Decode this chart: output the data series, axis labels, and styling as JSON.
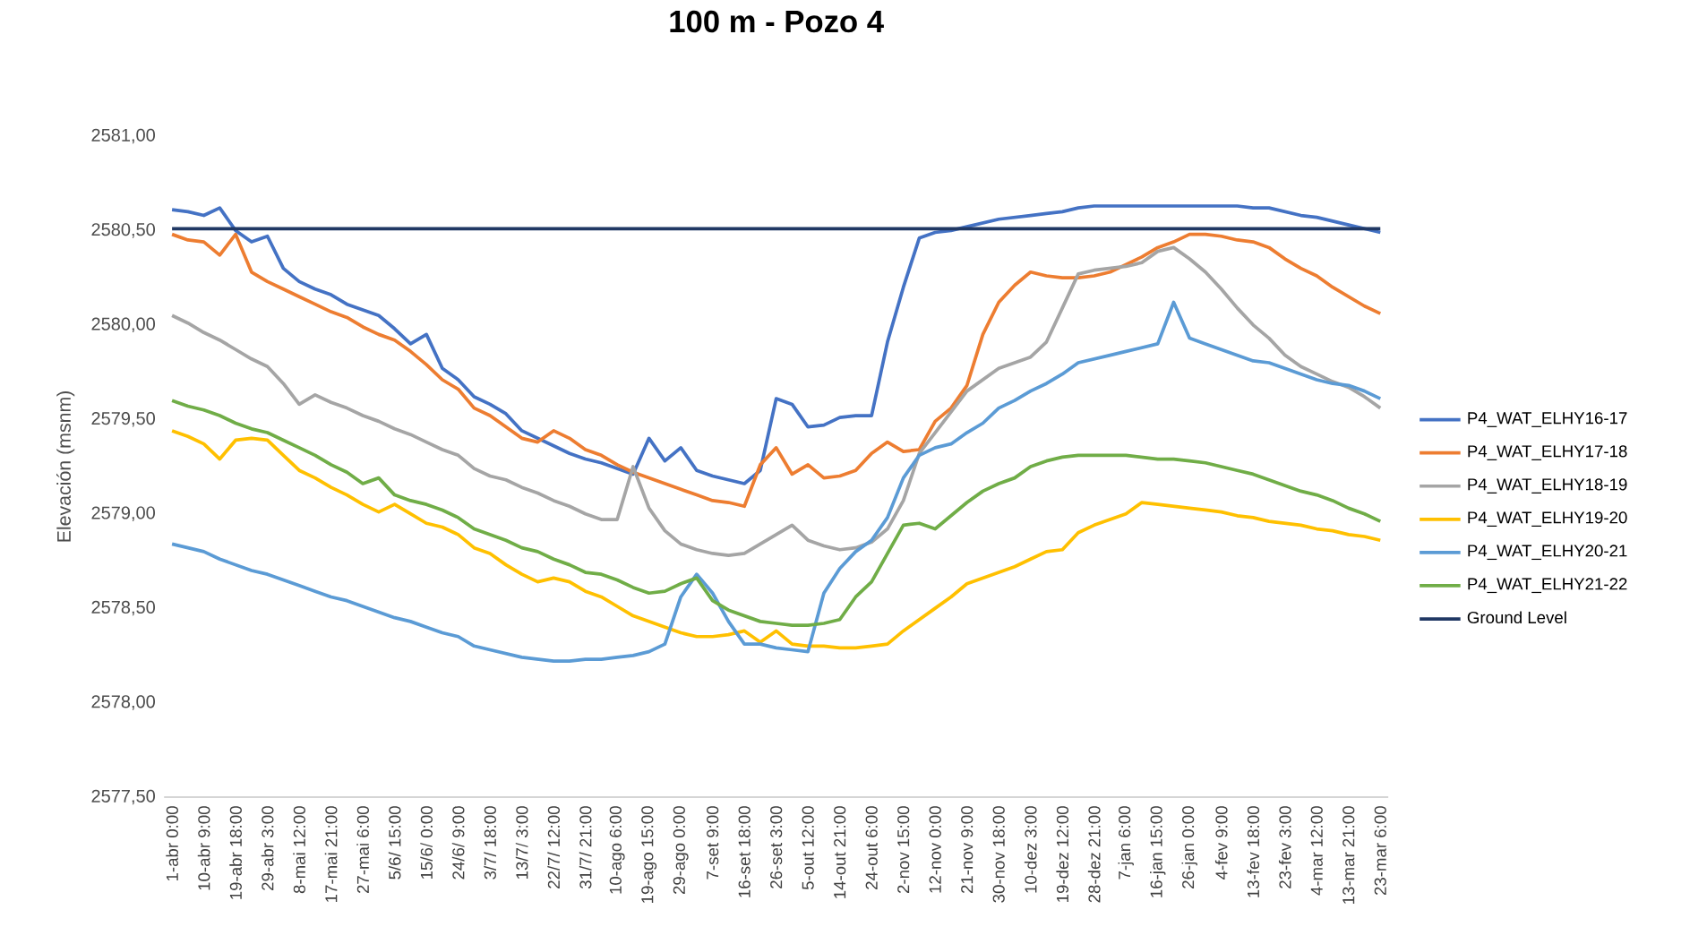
{
  "chart_data": {
    "type": "line",
    "title": "100 m  -  Pozo 4",
    "ylabel": "Elevación (msnm)",
    "categories": [
      "1-abr 0:00",
      null,
      "10-abr 9:00",
      null,
      "19-abr 18:00",
      null,
      "29-abr 3:00",
      null,
      "8-mai 12:00",
      null,
      "17-mai 21:00",
      null,
      "27-mai 6:00",
      null,
      "5/6/ 15:00",
      null,
      "15/6/ 0:00",
      null,
      "24/6/ 9:00",
      null,
      "3/7/ 18:00",
      null,
      "13/7/ 3:00",
      null,
      "22/7/ 12:00",
      null,
      "31/7/ 21:00",
      null,
      "10-ago 6:00",
      null,
      "19-ago 15:00",
      null,
      "29-ago 0:00",
      null,
      "7-set 9:00",
      null,
      "16-set 18:00",
      null,
      "26-set 3:00",
      null,
      "5-out 12:00",
      null,
      "14-out 21:00",
      null,
      "24-out 6:00",
      null,
      "2-nov 15:00",
      null,
      "12-nov 0:00",
      null,
      "21-nov 9:00",
      null,
      "30-nov 18:00",
      null,
      "10-dez 3:00",
      null,
      "19-dez 12:00",
      null,
      "28-dez 21:00",
      null,
      "7-jan 6:00",
      null,
      "16-jan 15:00",
      null,
      "26-jan 0:00",
      null,
      "4-fev 9:00",
      null,
      "13-fev 18:00",
      null,
      "23-fev 3:00",
      null,
      "4-mar 12:00",
      null,
      "13-mar 21:00",
      null,
      "23-mar 6:00"
    ],
    "ylim": [
      2577.5,
      2581
    ],
    "yticks": [
      {
        "value": 2577.5,
        "label": "2577,50"
      },
      {
        "value": 2578,
        "label": "2578,00"
      },
      {
        "value": 2578.5,
        "label": "2578,50"
      },
      {
        "value": 2579,
        "label": "2579,00"
      },
      {
        "value": 2579.5,
        "label": "2579,50"
      },
      {
        "value": 2580,
        "label": "2580,00"
      },
      {
        "value": 2580.5,
        "label": "2580,50"
      },
      {
        "value": 2581,
        "label": "2581,00"
      }
    ],
    "legend": "right",
    "series": [
      {
        "name": "P4_WAT_ELHY16-17",
        "color": "#4472c4",
        "values": [
          2580.61,
          2580.6,
          2580.58,
          2580.62,
          2580.5,
          2580.44,
          2580.47,
          2580.3,
          2580.23,
          2580.19,
          2580.16,
          2580.11,
          2580.08,
          2580.05,
          2579.98,
          2579.9,
          2579.95,
          2579.77,
          2579.71,
          2579.62,
          2579.58,
          2579.53,
          2579.44,
          2579.4,
          2579.36,
          2579.32,
          2579.29,
          2579.27,
          2579.24,
          2579.21,
          2579.4,
          2579.28,
          2579.35,
          2579.23,
          2579.2,
          2579.18,
          2579.16,
          2579.23,
          2579.61,
          2579.58,
          2579.46,
          2579.47,
          2579.51,
          2579.52,
          2579.52,
          2579.91,
          2580.2,
          2580.46,
          2580.49,
          2580.5,
          2580.52,
          2580.54,
          2580.56,
          2580.57,
          2580.58,
          2580.59,
          2580.6,
          2580.62,
          2580.63,
          2580.63,
          2580.63,
          2580.63,
          2580.63,
          2580.63,
          2580.63,
          2580.63,
          2580.63,
          2580.63,
          2580.62,
          2580.62,
          2580.6,
          2580.58,
          2580.57,
          2580.55,
          2580.53,
          2580.51,
          2580.49
        ]
      },
      {
        "name": "P4_WAT_ELHY17-18",
        "color": "#ed7d31",
        "values": [
          2580.48,
          2580.45,
          2580.44,
          2580.37,
          2580.48,
          2580.28,
          2580.23,
          2580.19,
          2580.15,
          2580.11,
          2580.07,
          2580.04,
          2579.99,
          2579.95,
          2579.92,
          2579.86,
          2579.79,
          2579.71,
          2579.66,
          2579.56,
          2579.52,
          2579.46,
          2579.4,
          2579.38,
          2579.44,
          2579.4,
          2579.34,
          2579.31,
          2579.26,
          2579.22,
          2579.19,
          2579.16,
          2579.13,
          2579.1,
          2579.07,
          2579.06,
          2579.04,
          2579.26,
          2579.35,
          2579.21,
          2579.26,
          2579.19,
          2579.2,
          2579.23,
          2579.32,
          2579.38,
          2579.33,
          2579.34,
          2579.49,
          2579.56,
          2579.68,
          2579.95,
          2580.12,
          2580.21,
          2580.28,
          2580.26,
          2580.25,
          2580.25,
          2580.26,
          2580.28,
          2580.32,
          2580.36,
          2580.41,
          2580.44,
          2580.48,
          2580.48,
          2580.47,
          2580.45,
          2580.44,
          2580.41,
          2580.35,
          2580.3,
          2580.26,
          2580.2,
          2580.15,
          2580.1,
          2580.06
        ]
      },
      {
        "name": "P4_WAT_ELHY18-19",
        "color": "#a5a5a5",
        "values": [
          2580.05,
          2580.01,
          2579.96,
          2579.92,
          2579.87,
          2579.82,
          2579.78,
          2579.69,
          2579.58,
          2579.63,
          2579.59,
          2579.56,
          2579.52,
          2579.49,
          2579.45,
          2579.42,
          2579.38,
          2579.34,
          2579.31,
          2579.24,
          2579.2,
          2579.18,
          2579.14,
          2579.11,
          2579.07,
          2579.04,
          2579.0,
          2578.97,
          2578.97,
          2579.25,
          2579.03,
          2578.91,
          2578.84,
          2578.81,
          2578.79,
          2578.78,
          2578.79,
          2578.84,
          2578.89,
          2578.94,
          2578.86,
          2578.83,
          2578.81,
          2578.82,
          2578.85,
          2578.92,
          2579.07,
          2579.32,
          2579.43,
          2579.54,
          2579.65,
          2579.71,
          2579.77,
          2579.8,
          2579.83,
          2579.91,
          2580.09,
          2580.27,
          2580.29,
          2580.3,
          2580.31,
          2580.33,
          2580.39,
          2580.41,
          2580.35,
          2580.28,
          2580.19,
          2580.09,
          2580.0,
          2579.93,
          2579.84,
          2579.78,
          2579.74,
          2579.7,
          2579.67,
          2579.62,
          2579.56
        ]
      },
      {
        "name": "P4_WAT_ELHY19-20",
        "color": "#ffc000",
        "values": [
          2579.44,
          2579.41,
          2579.37,
          2579.29,
          2579.39,
          2579.4,
          2579.39,
          2579.31,
          2579.23,
          2579.19,
          2579.14,
          2579.1,
          2579.05,
          2579.01,
          2579.05,
          2579.0,
          2578.95,
          2578.93,
          2578.89,
          2578.82,
          2578.79,
          2578.73,
          2578.68,
          2578.64,
          2578.66,
          2578.64,
          2578.59,
          2578.56,
          2578.51,
          2578.46,
          2578.43,
          2578.4,
          2578.37,
          2578.35,
          2578.35,
          2578.36,
          2578.38,
          2578.32,
          2578.38,
          2578.31,
          2578.3,
          2578.3,
          2578.29,
          2578.29,
          2578.3,
          2578.31,
          2578.38,
          2578.44,
          2578.5,
          2578.56,
          2578.63,
          2578.66,
          2578.69,
          2578.72,
          2578.76,
          2578.8,
          2578.81,
          2578.9,
          2578.94,
          2578.97,
          2579.0,
          2579.06,
          2579.05,
          2579.04,
          2579.03,
          2579.02,
          2579.01,
          2578.99,
          2578.98,
          2578.96,
          2578.95,
          2578.94,
          2578.92,
          2578.91,
          2578.89,
          2578.88,
          2578.86
        ]
      },
      {
        "name": "P4_WAT_ELHY20-21",
        "color": "#5b9bd5",
        "values": [
          2578.84,
          2578.82,
          2578.8,
          2578.76,
          2578.73,
          2578.7,
          2578.68,
          2578.65,
          2578.62,
          2578.59,
          2578.56,
          2578.54,
          2578.51,
          2578.48,
          2578.45,
          2578.43,
          2578.4,
          2578.37,
          2578.35,
          2578.3,
          2578.28,
          2578.26,
          2578.24,
          2578.23,
          2578.22,
          2578.22,
          2578.23,
          2578.23,
          2578.24,
          2578.25,
          2578.27,
          2578.31,
          2578.56,
          2578.68,
          2578.58,
          2578.43,
          2578.31,
          2578.31,
          2578.29,
          2578.28,
          2578.27,
          2578.58,
          2578.71,
          2578.8,
          2578.86,
          2578.98,
          2579.19,
          2579.31,
          2579.35,
          2579.37,
          2579.43,
          2579.48,
          2579.56,
          2579.6,
          2579.65,
          2579.69,
          2579.74,
          2579.8,
          2579.82,
          2579.84,
          2579.86,
          2579.88,
          2579.9,
          2580.12,
          2579.93,
          2579.9,
          2579.87,
          2579.84,
          2579.81,
          2579.8,
          2579.77,
          2579.74,
          2579.71,
          2579.69,
          2579.68,
          2579.65,
          2579.61
        ]
      },
      {
        "name": "P4_WAT_ELHY21-22",
        "color": "#70ad47",
        "values": [
          2579.6,
          2579.57,
          2579.55,
          2579.52,
          2579.48,
          2579.45,
          2579.43,
          2579.39,
          2579.35,
          2579.31,
          2579.26,
          2579.22,
          2579.16,
          2579.19,
          2579.1,
          2579.07,
          2579.05,
          2579.02,
          2578.98,
          2578.92,
          2578.89,
          2578.86,
          2578.82,
          2578.8,
          2578.76,
          2578.73,
          2578.69,
          2578.68,
          2578.65,
          2578.61,
          2578.58,
          2578.59,
          2578.63,
          2578.66,
          2578.54,
          2578.49,
          2578.46,
          2578.43,
          2578.42,
          2578.41,
          2578.41,
          2578.42,
          2578.44,
          2578.56,
          2578.64,
          2578.79,
          2578.94,
          2578.95,
          2578.92,
          2578.99,
          2579.06,
          2579.12,
          2579.16,
          2579.19,
          2579.25,
          2579.28,
          2579.3,
          2579.31,
          2579.31,
          2579.31,
          2579.31,
          2579.3,
          2579.29,
          2579.29,
          2579.28,
          2579.27,
          2579.25,
          2579.23,
          2579.21,
          2579.18,
          2579.15,
          2579.12,
          2579.1,
          2579.07,
          2579.03,
          2579.0,
          2578.96
        ]
      },
      {
        "name": "Ground Level",
        "color": "#203864",
        "values": [
          2580.51,
          2580.51,
          2580.51,
          2580.51,
          2580.51,
          2580.51,
          2580.51,
          2580.51,
          2580.51,
          2580.51,
          2580.51,
          2580.51,
          2580.51,
          2580.51,
          2580.51,
          2580.51,
          2580.51,
          2580.51,
          2580.51,
          2580.51,
          2580.51,
          2580.51,
          2580.51,
          2580.51,
          2580.51,
          2580.51,
          2580.51,
          2580.51,
          2580.51,
          2580.51,
          2580.51,
          2580.51,
          2580.51,
          2580.51,
          2580.51,
          2580.51,
          2580.51,
          2580.51,
          2580.51,
          2580.51,
          2580.51,
          2580.51,
          2580.51,
          2580.51,
          2580.51,
          2580.51,
          2580.51,
          2580.51,
          2580.51,
          2580.51,
          2580.51,
          2580.51,
          2580.51,
          2580.51,
          2580.51,
          2580.51,
          2580.51,
          2580.51,
          2580.51,
          2580.51,
          2580.51,
          2580.51,
          2580.51,
          2580.51,
          2580.51,
          2580.51,
          2580.51,
          2580.51,
          2580.51,
          2580.51,
          2580.51,
          2580.51,
          2580.51,
          2580.51,
          2580.51,
          2580.51,
          2580.51
        ]
      }
    ]
  }
}
